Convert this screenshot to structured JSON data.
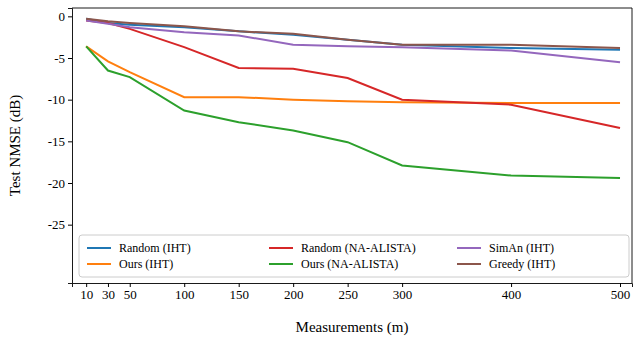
{
  "chart_data": {
    "type": "line",
    "x_label": "Measurements (m)",
    "y_label": "Test NMSE (dB)",
    "x": [
      10,
      30,
      50,
      100,
      150,
      200,
      250,
      300,
      400,
      500
    ],
    "xlim": [
      -3,
      511
    ],
    "xticks": [
      10,
      30,
      50,
      100,
      150,
      200,
      250,
      300,
      400,
      500
    ],
    "ylim": [
      -32,
      1
    ],
    "yticks": [
      0,
      -5,
      -10,
      -15,
      -20,
      -25
    ],
    "grid": false,
    "legend": "lower left",
    "series": [
      {
        "name": "Random (IHT)",
        "color": "#1f77b4",
        "values": [
          -0.3,
          -0.8,
          -1.0,
          -1.3,
          -1.8,
          -2.2,
          -2.8,
          -3.4,
          -3.8,
          -4.0
        ]
      },
      {
        "name": "Ours (IHT)",
        "color": "#ff7f0e",
        "values": [
          -3.6,
          -5.4,
          -6.7,
          -9.7,
          -9.7,
          -10.0,
          -10.2,
          -10.3,
          -10.4,
          -10.4
        ]
      },
      {
        "name": "Random (NA-ALISTA)",
        "color": "#d62728",
        "values": [
          -0.5,
          -0.8,
          -1.5,
          -3.7,
          -6.2,
          -6.3,
          -7.4,
          -10.0,
          -10.6,
          -13.4
        ]
      },
      {
        "name": "Ours (NA-ALISTA)",
        "color": "#2ca02c",
        "values": [
          -3.6,
          -6.5,
          -7.3,
          -11.3,
          -12.7,
          -13.7,
          -15.1,
          -17.9,
          -19.1,
          -19.4
        ]
      },
      {
        "name": "SimAn (IHT)",
        "color": "#9467bd",
        "values": [
          -0.5,
          -0.9,
          -1.3,
          -1.9,
          -2.3,
          -3.4,
          -3.6,
          -3.7,
          -4.1,
          -5.5
        ]
      },
      {
        "name": "Greedy (IHT)",
        "color": "#8c564b",
        "values": [
          -0.3,
          -0.6,
          -0.8,
          -1.2,
          -1.8,
          -2.1,
          -2.8,
          -3.4,
          -3.4,
          -3.8
        ]
      }
    ]
  }
}
